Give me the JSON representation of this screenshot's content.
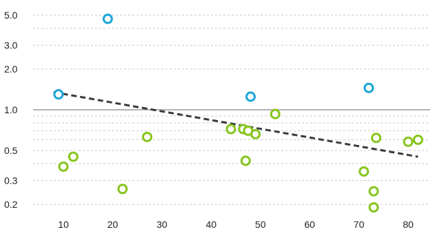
{
  "chart_data": {
    "type": "scatter",
    "title": "",
    "xlabel": "",
    "ylabel": "",
    "xlim": [
      2,
      85
    ],
    "ylim": [
      0.16,
      6.0
    ],
    "yscale": "log",
    "x_ticks": [
      10,
      20,
      30,
      40,
      50,
      60,
      70,
      80
    ],
    "y_ticks": [
      0.2,
      0.3,
      0.5,
      1.0,
      2.0,
      3.0,
      5.0
    ],
    "y_tick_labels": [
      "0.2",
      "0.3",
      "0.5",
      "1.0",
      "2.0",
      "3.0",
      "5.0"
    ],
    "y_minor_gridlines": [
      0.4,
      0.6,
      0.7,
      0.8,
      0.9,
      4.0
    ],
    "reference_line": 1.0,
    "grid": true,
    "legend": "none",
    "colors": {
      "blue": "#1aa6d8",
      "green": "#86c51c",
      "trend": "#3a3a3a"
    },
    "series": [
      {
        "color": "#1aa6d8",
        "points": [
          [
            9,
            1.3
          ],
          [
            19,
            4.7
          ],
          [
            48,
            1.25
          ],
          [
            72,
            1.45
          ]
        ]
      },
      {
        "color": "#86c51c",
        "points": [
          [
            10,
            0.38
          ],
          [
            12,
            0.45
          ],
          [
            22,
            0.26
          ],
          [
            27,
            0.63
          ],
          [
            44,
            0.72
          ],
          [
            46.5,
            0.72
          ],
          [
            47,
            0.42
          ],
          [
            47.5,
            0.7
          ],
          [
            49,
            0.66
          ],
          [
            53,
            0.93
          ],
          [
            71,
            0.35
          ],
          [
            73,
            0.25
          ],
          [
            73.5,
            0.62
          ],
          [
            73,
            0.19
          ],
          [
            80,
            0.58
          ],
          [
            82,
            0.6
          ]
        ]
      }
    ],
    "trend_line": {
      "x": [
        8,
        82
      ],
      "y": [
        1.35,
        0.45
      ]
    }
  }
}
